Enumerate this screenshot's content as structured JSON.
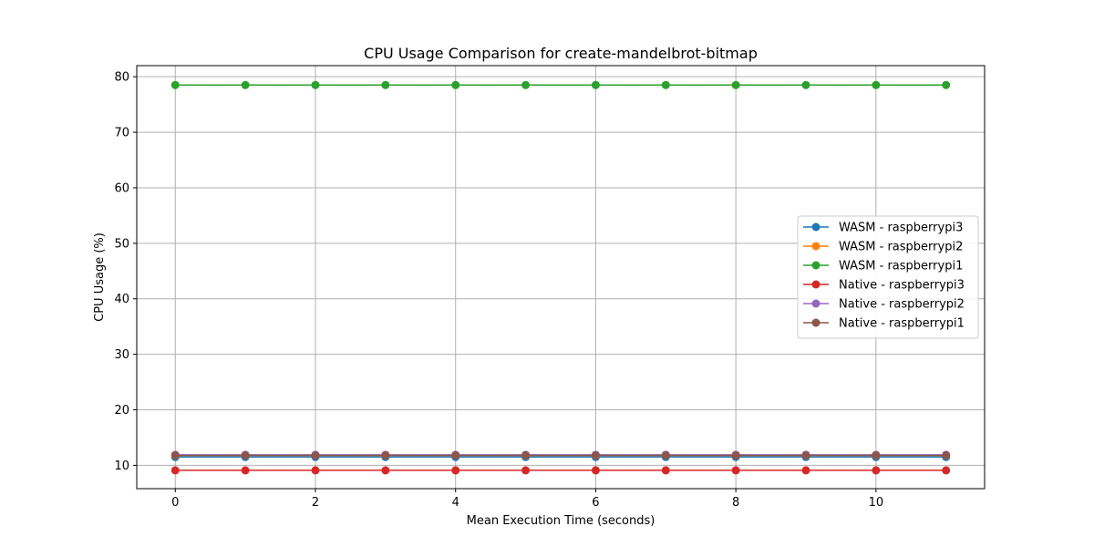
{
  "chart_data": {
    "type": "line",
    "title": "CPU Usage Comparison for create-mandelbrot-bitmap",
    "xlabel": "Mean Execution Time (seconds)",
    "ylabel": "CPU Usage (%)",
    "xlim": [
      -0.55,
      11.55
    ],
    "ylim": [
      5.8,
      82
    ],
    "xticks": [
      0,
      2,
      4,
      6,
      8,
      10
    ],
    "yticks": [
      10,
      20,
      30,
      40,
      50,
      60,
      70,
      80
    ],
    "grid": true,
    "legend_position": "center-right",
    "x": [
      0,
      1,
      2,
      3,
      4,
      5,
      6,
      7,
      8,
      9,
      10,
      11
    ],
    "series": [
      {
        "name": "WASM - raspberrypi3",
        "color": "#1f77b4",
        "values": [
          11.5,
          11.5,
          11.5,
          11.5,
          11.5,
          11.5,
          11.5,
          11.5,
          11.5,
          11.5,
          11.5,
          11.5
        ]
      },
      {
        "name": "WASM - raspberrypi2",
        "color": "#ff7f0e",
        "values": [
          11.8,
          11.8,
          11.8,
          11.8,
          11.8,
          11.8,
          11.8,
          11.8,
          11.8,
          11.8,
          11.8,
          11.8
        ]
      },
      {
        "name": "WASM - raspberrypi1",
        "color": "#2ca02c",
        "values": [
          78.5,
          78.5,
          78.5,
          78.5,
          78.5,
          78.5,
          78.5,
          78.5,
          78.5,
          78.5,
          78.5,
          78.5
        ]
      },
      {
        "name": "Native - raspberrypi3",
        "color": "#d62728",
        "values": [
          9.1,
          9.1,
          9.1,
          9.1,
          9.1,
          9.1,
          9.1,
          9.1,
          9.1,
          9.1,
          9.1,
          9.1
        ]
      },
      {
        "name": "Native - raspberrypi2",
        "color": "#9467bd",
        "values": [
          11.9,
          11.9,
          11.9,
          11.9,
          11.9,
          11.9,
          11.9,
          11.9,
          11.9,
          11.9,
          11.9,
          11.9
        ]
      },
      {
        "name": "Native - raspberrypi1",
        "color": "#8c564b",
        "values": [
          11.8,
          11.8,
          11.8,
          11.8,
          11.8,
          11.8,
          11.8,
          11.8,
          11.8,
          11.8,
          11.8,
          11.8
        ]
      }
    ]
  }
}
